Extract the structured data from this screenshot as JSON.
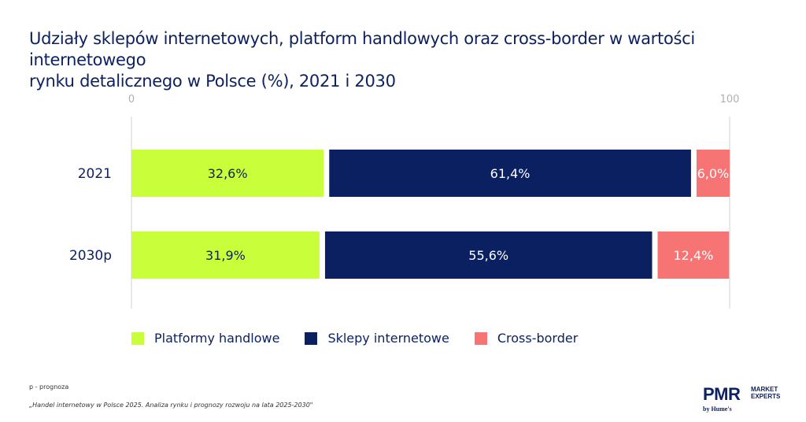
{
  "title": {
    "line1": "Udziały sklepów internetowych, platform handlowych oraz cross-border w wartości internetowego",
    "line2": "rynku detalicznego w Polsce (%), 2021 i 2030"
  },
  "chart_data": {
    "type": "bar",
    "orientation": "horizontal",
    "stacked": true,
    "title": "Udziały sklepów internetowych, platform handlowych oraz cross-border w wartości internetowego rynku detalicznego w Polsce (%), 2021 i 2030",
    "categories": [
      "2021",
      "2030p"
    ],
    "series": [
      {
        "name": "Platformy handlowe",
        "values": [
          32.6,
          31.9
        ],
        "labels": [
          "32,6%",
          "31,9%"
        ],
        "color": "#c8ff3a",
        "label_color": "#0d2260"
      },
      {
        "name": "Sklepy internetowe",
        "values": [
          61.4,
          55.6
        ],
        "labels": [
          "61,4%",
          "55,6%"
        ],
        "color": "#0b2060",
        "label_color": "#ffffff"
      },
      {
        "name": "Cross-border",
        "values": [
          6.0,
          12.4
        ],
        "labels": [
          "6,0%",
          "12,4%"
        ],
        "color": "#f77474",
        "label_color": "#ffffff"
      }
    ],
    "xlim": [
      0,
      100
    ],
    "x_ticks": [
      "0",
      "100"
    ],
    "xlabel": "",
    "ylabel": "",
    "legend": "bottom",
    "grid": false
  },
  "legend": [
    {
      "label": "Platformy handlowe",
      "color": "#c8ff3a"
    },
    {
      "label": "Sklepy internetowe",
      "color": "#0b2060"
    },
    {
      "label": "Cross-border",
      "color": "#f77474"
    }
  ],
  "footer": {
    "note": "p - prognoza",
    "source": "„Handel internetowy w Polsce 2025. Analiza rynku i prognozy rozwoju na lata 2025-2030\""
  },
  "logo": {
    "main": "PMR",
    "side_line1": "MARKET",
    "side_line2": "EXPERTS",
    "by": "by Hume's"
  }
}
